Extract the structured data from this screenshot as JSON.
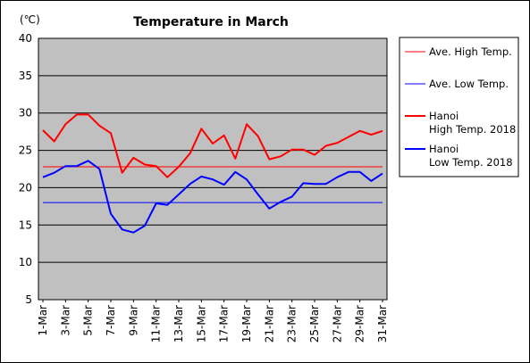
{
  "chart_data": {
    "type": "line",
    "title": "Temperature in March",
    "unit_label": "(℃)",
    "ylim": [
      5,
      40
    ],
    "yticks": [
      "40",
      "35",
      "30",
      "25",
      "20",
      "15",
      "10",
      "5"
    ],
    "xticks": [
      "1-Mar",
      "3-Mar",
      "5-Mar",
      "7-Mar",
      "9-Mar",
      "11-Mar",
      "13-Mar",
      "15-Mar",
      "17-Mar",
      "19-Mar",
      "21-Mar",
      "23-Mar",
      "25-Mar",
      "27-Mar",
      "29-Mar",
      "31-Mar"
    ],
    "x": [
      1,
      2,
      3,
      4,
      5,
      6,
      7,
      8,
      9,
      10,
      11,
      12,
      13,
      14,
      15,
      16,
      17,
      18,
      19,
      20,
      21,
      22,
      23,
      24,
      25,
      26,
      27,
      28,
      29,
      30,
      31
    ],
    "grid": true,
    "plot_background": "#c0c0c0",
    "legend_position": "right",
    "series": [
      {
        "name": "Ave. High Temp.",
        "color": "#ff0000",
        "width": 1,
        "constant": 22.8
      },
      {
        "name": "Ave. Low Temp.",
        "color": "#0000ff",
        "width": 1,
        "constant": 18.0
      },
      {
        "name": "Hanoi High Temp. 2018",
        "legend_lines": [
          "Hanoi",
          "High Temp. 2018"
        ],
        "color": "#ff0000",
        "width": 2,
        "values": [
          27.7,
          26.2,
          28.5,
          29.8,
          29.8,
          28.3,
          27.3,
          22.0,
          24.0,
          23.1,
          22.9,
          21.4,
          22.8,
          24.6,
          27.9,
          25.9,
          27.0,
          23.9,
          28.5,
          26.9,
          23.8,
          24.2,
          25.1,
          25.1,
          24.4,
          25.6,
          26.0,
          26.8,
          27.6,
          27.1,
          27.6
        ]
      },
      {
        "name": "Hanoi Low Temp. 2018",
        "legend_lines": [
          "Hanoi",
          "Low Temp. 2018"
        ],
        "color": "#0000ff",
        "width": 2,
        "values": [
          21.4,
          22.0,
          22.9,
          22.9,
          23.6,
          22.5,
          16.5,
          14.4,
          14.0,
          14.9,
          17.9,
          17.7,
          19.1,
          20.5,
          21.5,
          21.1,
          20.4,
          22.1,
          21.1,
          19.1,
          17.2,
          18.1,
          18.8,
          20.6,
          20.5,
          20.5,
          21.4,
          22.1,
          22.1,
          20.9,
          21.9
        ]
      }
    ]
  }
}
